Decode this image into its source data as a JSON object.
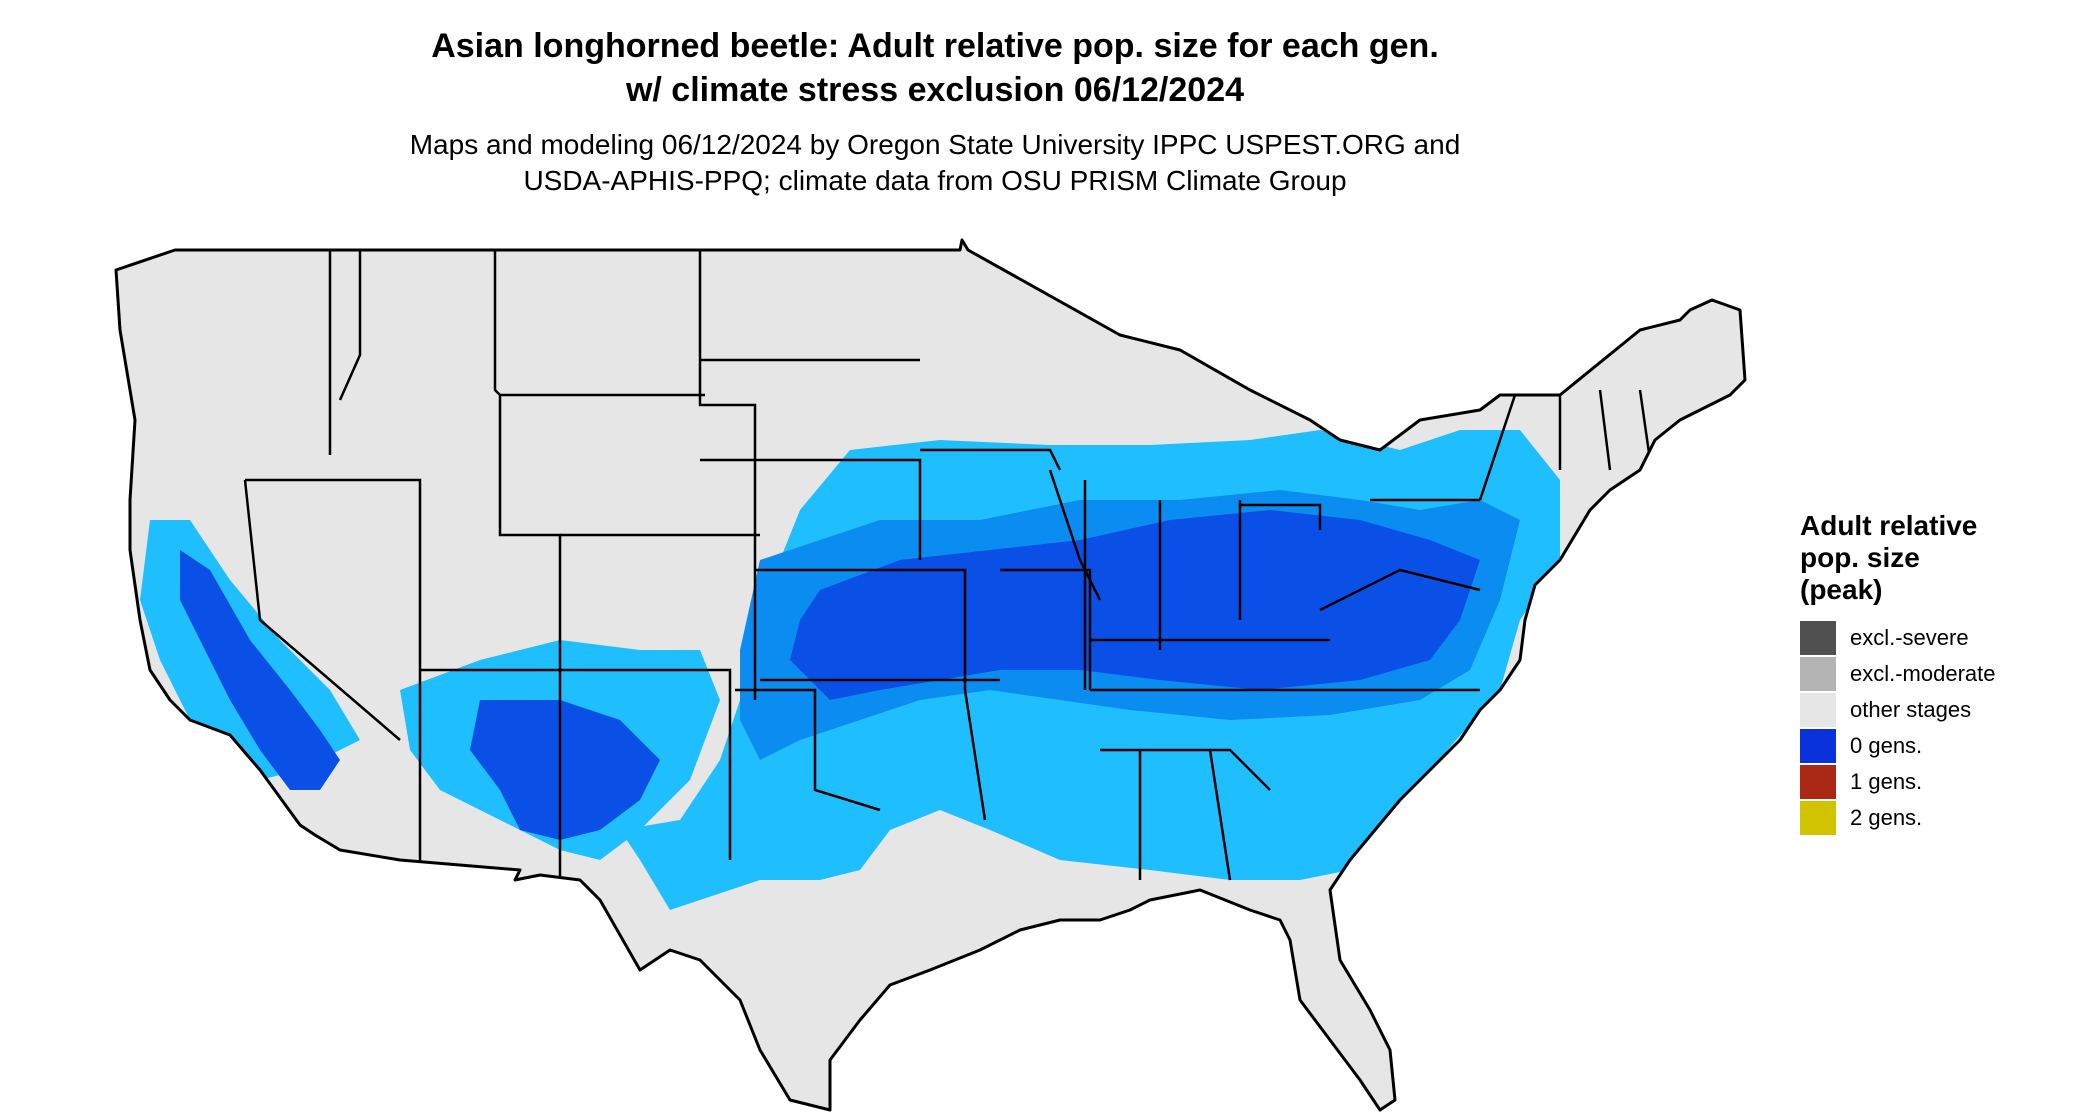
{
  "header": {
    "title_line1": "Asian longhorned beetle: Adult relative pop. size for each gen.",
    "title_line2": "w/ climate stress exclusion 06/12/2024",
    "subtitle_line1": "Maps and modeling 06/12/2024 by Oregon State University IPPC USPEST.ORG and",
    "subtitle_line2": "USDA-APHIS-PPQ; climate data from OSU PRISM Climate Group"
  },
  "legend": {
    "title_line1": "Adult relative",
    "title_line2": "pop. size",
    "title_line3": "(peak)",
    "items": [
      {
        "label": "excl.-severe",
        "color": "#505050"
      },
      {
        "label": "excl.-moderate",
        "color": "#b4b4b4"
      },
      {
        "label": "other stages",
        "color": "#e6e6e6"
      },
      {
        "label": "0 gens.",
        "color": "#0a32dc"
      },
      {
        "label": "1 gens.",
        "color": "#aa2814"
      },
      {
        "label": "2 gens.",
        "color": "#d2c300"
      }
    ]
  },
  "map": {
    "region": "Contiguous United States",
    "colors": {
      "land": "#e6e6e6",
      "light_blue": "#1ebeff",
      "mid_blue": "#0a8cf0",
      "dark_blue": "#0a50e6",
      "boundary": "#000000"
    }
  }
}
